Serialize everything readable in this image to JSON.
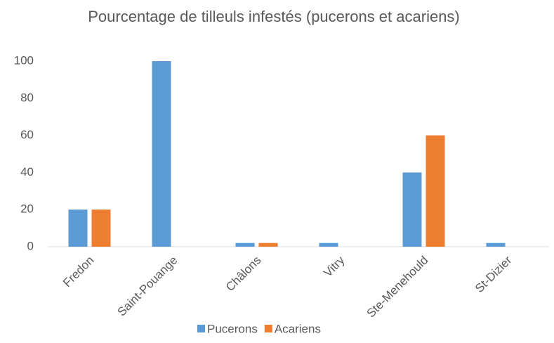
{
  "chart_data": {
    "type": "bar",
    "title": "Pourcentage de tilleuls infestés (pucerons et acariens)",
    "categories": [
      "Fredon",
      "Saint-Pouange",
      "Châlons",
      "Vitry",
      "Ste-Menehould",
      "St-Dizier"
    ],
    "series": [
      {
        "name": "Pucerons",
        "color": "#5b9bd5",
        "values": [
          20,
          100,
          2,
          2,
          40,
          2
        ]
      },
      {
        "name": "Acariens",
        "color": "#ed7d31",
        "values": [
          20,
          0,
          2,
          0,
          60,
          0
        ]
      }
    ],
    "ylim": [
      0,
      100
    ],
    "yticks": [
      0,
      20,
      40,
      60,
      80,
      100
    ],
    "grid": false,
    "legend": "bottom"
  }
}
